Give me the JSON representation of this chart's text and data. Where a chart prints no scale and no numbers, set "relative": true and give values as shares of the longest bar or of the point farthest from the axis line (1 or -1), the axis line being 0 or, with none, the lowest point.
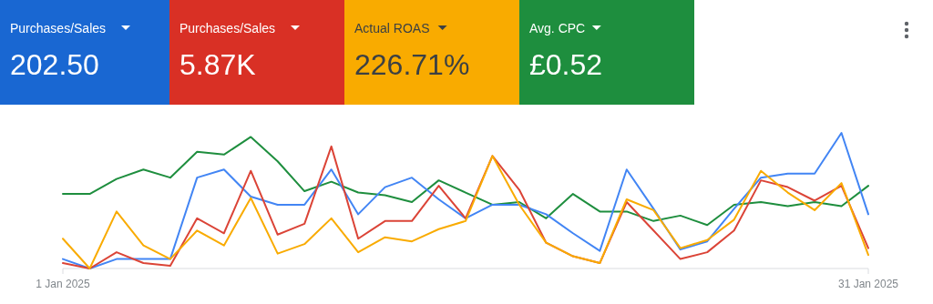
{
  "chart_data": [
    {
      "type": "other",
      "categories": [
        "Purchases/Sales",
        "Purchases/Sales",
        "Actual ROAS",
        "Avg. CPC"
      ],
      "value_labels": [
        "202.50",
        "5.87K",
        "226.71%",
        "£0.52"
      ],
      "colors": [
        "#1967d2",
        "#d93025",
        "#f9ab00",
        "#1e8e3e"
      ]
    },
    {
      "type": "line",
      "relative": true,
      "x": [
        "2025-01-01",
        "2025-01-02",
        "2025-01-03",
        "2025-01-04",
        "2025-01-05",
        "2025-01-06",
        "2025-01-07",
        "2025-01-08",
        "2025-01-09",
        "2025-01-10",
        "2025-01-11",
        "2025-01-12",
        "2025-01-13",
        "2025-01-14",
        "2025-01-15",
        "2025-01-16",
        "2025-01-17",
        "2025-01-18",
        "2025-01-19",
        "2025-01-20",
        "2025-01-21",
        "2025-01-22",
        "2025-01-23",
        "2025-01-24",
        "2025-01-25",
        "2025-01-26",
        "2025-01-27",
        "2025-01-28",
        "2025-01-29",
        "2025-01-30",
        "2025-01-31"
      ],
      "xlim": [
        "2025-01-01",
        "2025-01-31"
      ],
      "xticks": [
        {
          "value": "2025-01-01",
          "label": "1 Jan 2025"
        },
        {
          "value": "2025-01-31",
          "label": "31 Jan 2025"
        }
      ],
      "series": [
        {
          "color": "#1e8e3e",
          "values": [
            0.55,
            0.55,
            0.66,
            0.73,
            0.67,
            0.86,
            0.84,
            0.97,
            0.79,
            0.57,
            0.64,
            0.56,
            0.54,
            0.49,
            0.65,
            0.56,
            0.47,
            0.49,
            0.37,
            0.55,
            0.42,
            0.42,
            0.35,
            0.39,
            0.32,
            0.47,
            0.49,
            0.46,
            0.49,
            0.46,
            0.61
          ]
        },
        {
          "color": "#4285f4",
          "values": [
            0.07,
            0.0,
            0.07,
            0.07,
            0.07,
            0.67,
            0.73,
            0.53,
            0.47,
            0.47,
            0.73,
            0.4,
            0.6,
            0.67,
            0.51,
            0.37,
            0.47,
            0.47,
            0.4,
            0.26,
            0.13,
            0.73,
            0.44,
            0.14,
            0.2,
            0.44,
            0.67,
            0.7,
            0.7,
            1.0,
            0.4
          ]
        },
        {
          "color": "#db4437",
          "values": [
            0.04,
            0.0,
            0.12,
            0.04,
            0.02,
            0.37,
            0.26,
            0.72,
            0.25,
            0.33,
            0.9,
            0.22,
            0.35,
            0.35,
            0.61,
            0.37,
            0.83,
            0.58,
            0.19,
            0.09,
            0.04,
            0.49,
            0.28,
            0.07,
            0.12,
            0.28,
            0.65,
            0.6,
            0.5,
            0.61,
            0.15
          ]
        },
        {
          "color": "#f9ab00",
          "values": [
            0.22,
            0.0,
            0.42,
            0.17,
            0.07,
            0.28,
            0.17,
            0.52,
            0.11,
            0.18,
            0.37,
            0.12,
            0.23,
            0.2,
            0.29,
            0.35,
            0.83,
            0.47,
            0.19,
            0.09,
            0.04,
            0.51,
            0.43,
            0.15,
            0.21,
            0.36,
            0.72,
            0.56,
            0.43,
            0.63,
            0.1
          ]
        }
      ]
    }
  ]
}
